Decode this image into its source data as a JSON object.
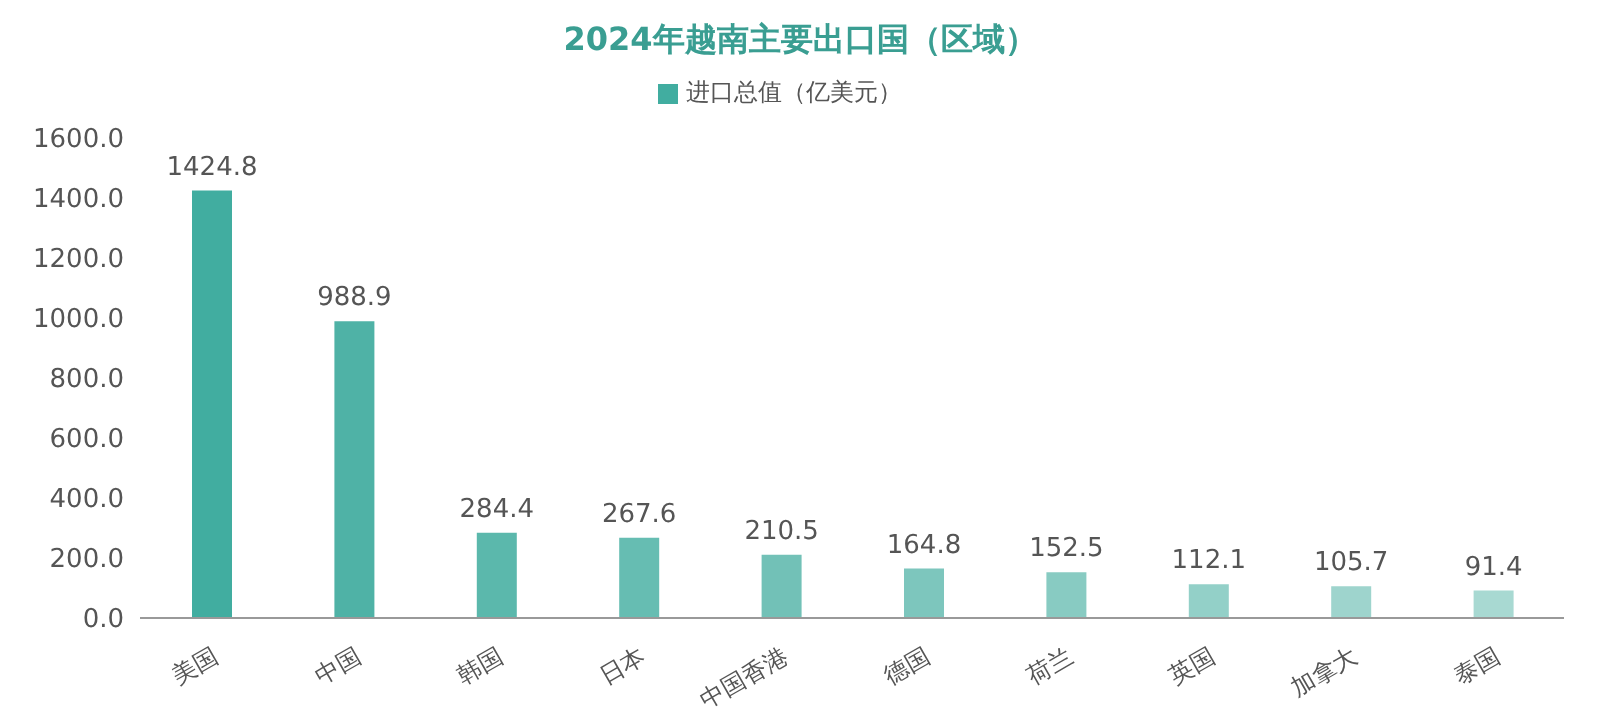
{
  "chart_data": {
    "type": "bar",
    "title": "2024年越南主要出口国（区域）",
    "categories": [
      "美国",
      "中国",
      "韩国",
      "日本",
      "中国香港",
      "德国",
      "荷兰",
      "英国",
      "加拿大",
      "泰国"
    ],
    "series": [
      {
        "name": "进口总值（亿美元）",
        "values": [
          1424.8,
          988.9,
          284.4,
          267.6,
          210.5,
          164.8,
          152.5,
          112.1,
          105.7,
          91.4
        ],
        "colors": [
          "#41ada0",
          "#4fb2a6",
          "#5bb8ac",
          "#66bdb2",
          "#72c1b7",
          "#7dc6bd",
          "#88cbc2",
          "#93d0c8",
          "#9ed4cd",
          "#a8d9d2"
        ]
      }
    ],
    "ylim": [
      0,
      1600
    ],
    "yticks": [
      {
        "value": 0,
        "label": "0.0"
      },
      {
        "value": 200,
        "label": "200.0"
      },
      {
        "value": 400,
        "label": "400.0"
      },
      {
        "value": 600,
        "label": "600.0"
      },
      {
        "value": 800,
        "label": "800.0"
      },
      {
        "value": 1000,
        "label": "1000.0"
      },
      {
        "value": 1200,
        "label": "1200.0"
      },
      {
        "value": 1400,
        "label": "1400.0"
      },
      {
        "value": 1600,
        "label": "1600.0"
      }
    ],
    "data_labels": true,
    "grid": false,
    "legend": "top"
  }
}
